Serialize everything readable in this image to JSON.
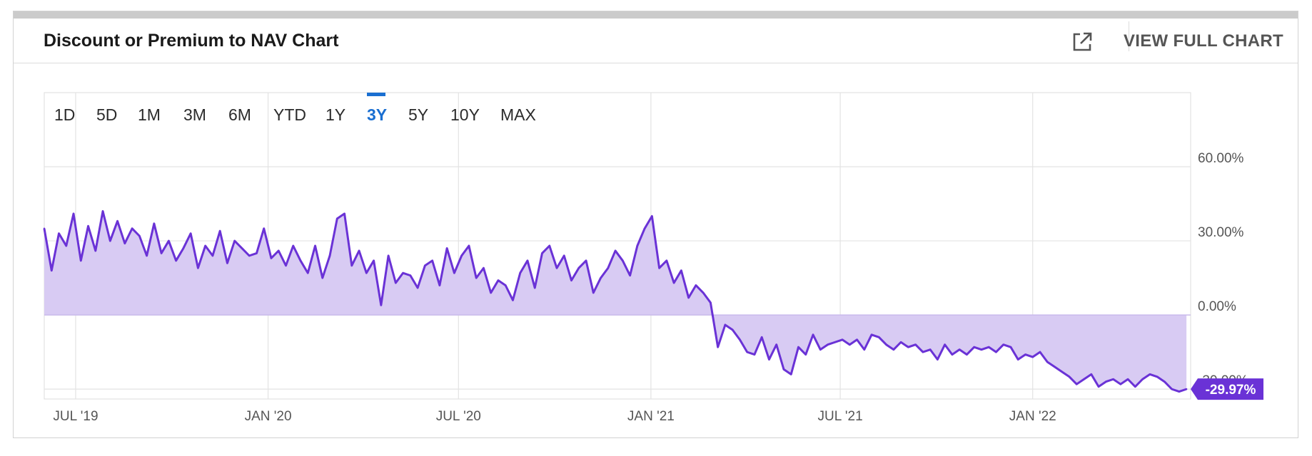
{
  "header": {
    "title": "Discount or Premium to NAV Chart",
    "external_icon": "external-link-icon",
    "full_chart_label": "VIEW FULL CHART"
  },
  "timeframes": {
    "items": [
      "1D",
      "5D",
      "1M",
      "3M",
      "6M",
      "YTD",
      "1Y",
      "3Y",
      "5Y",
      "10Y",
      "MAX"
    ],
    "active": "3Y",
    "active_color": "#1a6fd1"
  },
  "colors": {
    "line": "#6a32d6",
    "fill": "#d8cbf3",
    "grid": "#e3e3e3",
    "badge": "#6a32d6"
  },
  "chart_data": {
    "type": "area",
    "title": "Discount or Premium to NAV Chart",
    "xlabel": "",
    "ylabel": "",
    "ylim": [
      -34,
      90
    ],
    "y_ticks": [
      60,
      30,
      0,
      -30
    ],
    "y_tick_labels": [
      "60.00%",
      "30.00%",
      "0.00%",
      "-30.00%"
    ],
    "x_tick_labels": [
      "JUL '19",
      "JAN '20",
      "JUL '20",
      "JAN '21",
      "JUL '21",
      "JAN '22"
    ],
    "x_tick_dates": [
      "2019-07-01",
      "2020-01-01",
      "2020-07-01",
      "2021-01-01",
      "2021-07-01",
      "2022-01-01"
    ],
    "x_range": [
      "2019-06-01",
      "2022-06-01"
    ],
    "grid": true,
    "last_value_label": "-29.97%",
    "series": [
      {
        "x": [
          "2019-06-01",
          "2019-06-08",
          "2019-06-15",
          "2019-06-22",
          "2019-06-29",
          "2019-07-06",
          "2019-07-13",
          "2019-07-20",
          "2019-07-27",
          "2019-08-03",
          "2019-08-10",
          "2019-08-17",
          "2019-08-24",
          "2019-08-31",
          "2019-09-07",
          "2019-09-14",
          "2019-09-21",
          "2019-09-28",
          "2019-10-05",
          "2019-10-12",
          "2019-10-19",
          "2019-10-26",
          "2019-11-02",
          "2019-11-09",
          "2019-11-16",
          "2019-11-23",
          "2019-11-30",
          "2019-12-07",
          "2019-12-14",
          "2019-12-21",
          "2019-12-28",
          "2020-01-04",
          "2020-01-11",
          "2020-01-18",
          "2020-01-25",
          "2020-02-01",
          "2020-02-08",
          "2020-02-15",
          "2020-02-22",
          "2020-02-29",
          "2020-03-07",
          "2020-03-14",
          "2020-03-21",
          "2020-03-28",
          "2020-04-04",
          "2020-04-11",
          "2020-04-18",
          "2020-04-25",
          "2020-05-02",
          "2020-05-09",
          "2020-05-16",
          "2020-05-23",
          "2020-05-30",
          "2020-06-06",
          "2020-06-13",
          "2020-06-20",
          "2020-06-27",
          "2020-07-04",
          "2020-07-11",
          "2020-07-18",
          "2020-07-25",
          "2020-08-01",
          "2020-08-08",
          "2020-08-15",
          "2020-08-22",
          "2020-08-29",
          "2020-09-05",
          "2020-09-12",
          "2020-09-19",
          "2020-09-26",
          "2020-10-03",
          "2020-10-10",
          "2020-10-17",
          "2020-10-24",
          "2020-10-31",
          "2020-11-07",
          "2020-11-14",
          "2020-11-21",
          "2020-11-28",
          "2020-12-05",
          "2020-12-12",
          "2020-12-19",
          "2020-12-26",
          "2021-01-02",
          "2021-01-09",
          "2021-01-16",
          "2021-01-23",
          "2021-01-30",
          "2021-02-06",
          "2021-02-13",
          "2021-02-20",
          "2021-02-27",
          "2021-03-06",
          "2021-03-13",
          "2021-03-20",
          "2021-03-27",
          "2021-04-03",
          "2021-04-10",
          "2021-04-17",
          "2021-04-24",
          "2021-05-01",
          "2021-05-08",
          "2021-05-15",
          "2021-05-22",
          "2021-05-29",
          "2021-06-05",
          "2021-06-12",
          "2021-06-19",
          "2021-06-26",
          "2021-07-03",
          "2021-07-10",
          "2021-07-17",
          "2021-07-24",
          "2021-07-31",
          "2021-08-07",
          "2021-08-14",
          "2021-08-21",
          "2021-08-28",
          "2021-09-04",
          "2021-09-11",
          "2021-09-18",
          "2021-09-25",
          "2021-10-02",
          "2021-10-09",
          "2021-10-16",
          "2021-10-23",
          "2021-10-30",
          "2021-11-06",
          "2021-11-13",
          "2021-11-20",
          "2021-11-27",
          "2021-12-04",
          "2021-12-11",
          "2021-12-18",
          "2021-12-25",
          "2022-01-01",
          "2022-01-08",
          "2022-01-15",
          "2022-01-22",
          "2022-01-29",
          "2022-02-05",
          "2022-02-12",
          "2022-02-19",
          "2022-02-26",
          "2022-03-05",
          "2022-03-12",
          "2022-03-19",
          "2022-03-26",
          "2022-04-02",
          "2022-04-09",
          "2022-04-16",
          "2022-04-23",
          "2022-04-30",
          "2022-05-07",
          "2022-05-14",
          "2022-05-21",
          "2022-05-28"
        ],
        "values": [
          35,
          18,
          33,
          28,
          41,
          22,
          36,
          26,
          42,
          30,
          38,
          29,
          35,
          32,
          24,
          37,
          25,
          30,
          22,
          27,
          33,
          19,
          28,
          24,
          34,
          21,
          30,
          27,
          24,
          25,
          35,
          23,
          26,
          20,
          28,
          22,
          17,
          28,
          15,
          24,
          39,
          41,
          20,
          26,
          17,
          22,
          4,
          24,
          13,
          17,
          16,
          11,
          20,
          22,
          12,
          27,
          17,
          24,
          28,
          15,
          19,
          9,
          14,
          12,
          6,
          17,
          22,
          11,
          25,
          28,
          19,
          24,
          14,
          19,
          22,
          9,
          15,
          19,
          26,
          22,
          16,
          28,
          35,
          40,
          19,
          22,
          13,
          18,
          7,
          12,
          9,
          5,
          -13,
          -4,
          -6,
          -10,
          -15,
          -16,
          -9,
          -18,
          -12,
          -22,
          -24,
          -13,
          -16,
          -8,
          -14,
          -12,
          -11,
          -10,
          -12,
          -10,
          -14,
          -8,
          -9,
          -12,
          -14,
          -11,
          -13,
          -12,
          -15,
          -14,
          -18,
          -12,
          -16,
          -14,
          -16,
          -13,
          -14,
          -13,
          -15,
          -12,
          -13,
          -18,
          -16,
          -17,
          -15,
          -19,
          -21,
          -23,
          -25,
          -28,
          -26,
          -24,
          -29,
          -27,
          -26,
          -28,
          -26,
          -29,
          -26,
          -24,
          -25,
          -27,
          -30,
          -31,
          -30
        ]
      }
    ]
  }
}
